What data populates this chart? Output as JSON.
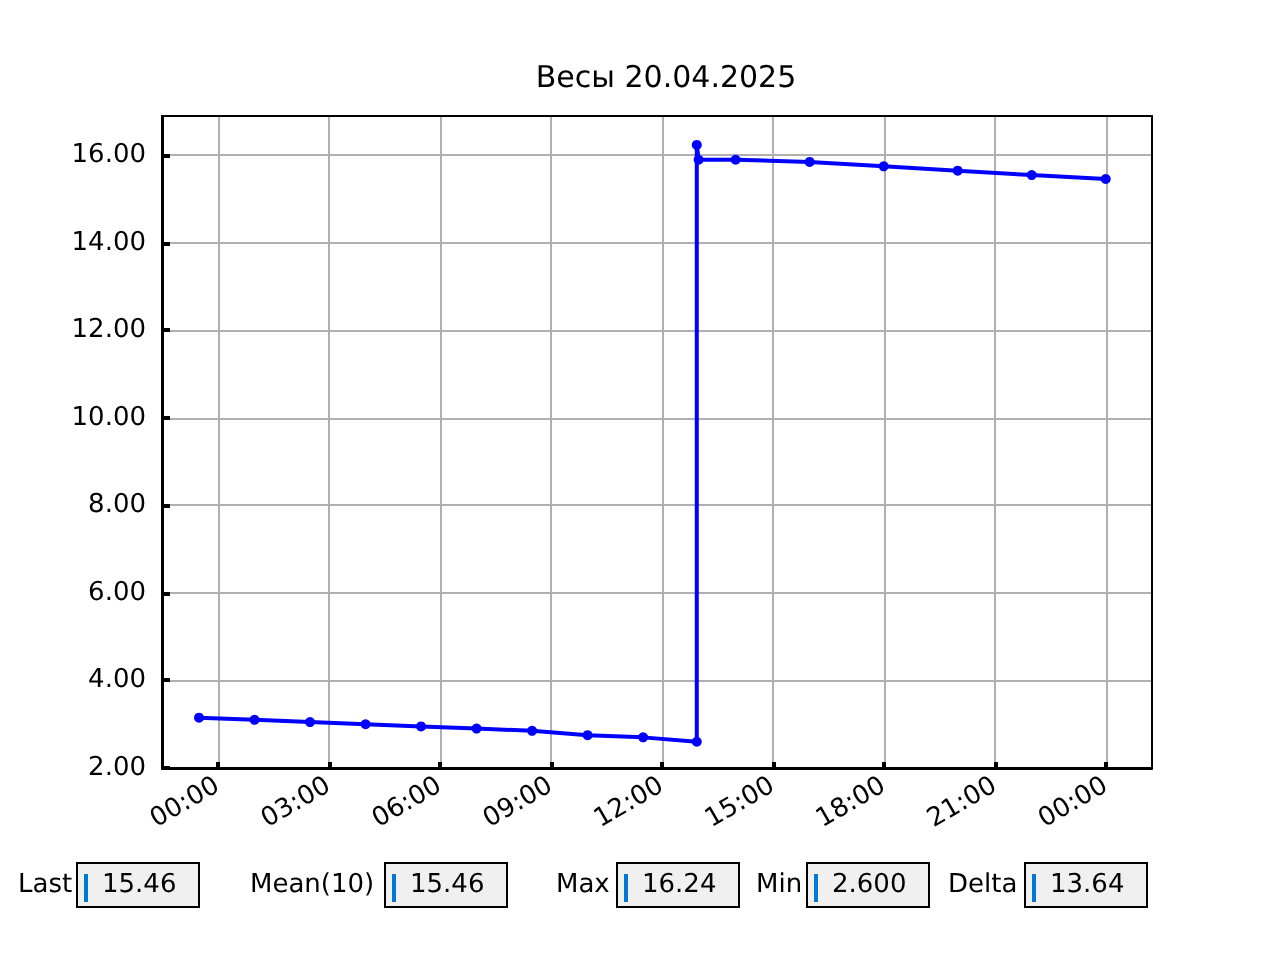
{
  "chart_data": {
    "type": "line",
    "title": "Весы 20.04.2025",
    "x": [
      -0.5,
      1,
      2.5,
      4,
      5.5,
      7,
      8.5,
      10,
      11.5,
      12.95,
      12.95,
      13,
      14,
      16,
      18,
      20,
      22,
      24
    ],
    "series": [
      {
        "color": "#0000ff",
        "values": [
          3.15,
          3.1,
          3.05,
          3.0,
          2.95,
          2.9,
          2.85,
          2.75,
          2.7,
          2.6,
          16.24,
          15.9,
          15.9,
          15.85,
          15.75,
          15.65,
          15.55,
          15.46
        ]
      }
    ],
    "xlim": [
      -1.5,
      25.25
    ],
    "xticks": [
      {
        "value": 0,
        "label": "00:00"
      },
      {
        "value": 3,
        "label": "03:00"
      },
      {
        "value": 6,
        "label": "06:00"
      },
      {
        "value": 9,
        "label": "09:00"
      },
      {
        "value": 12,
        "label": "12:00"
      },
      {
        "value": 15,
        "label": "15:00"
      },
      {
        "value": 18,
        "label": "18:00"
      },
      {
        "value": 21,
        "label": "21:00"
      },
      {
        "value": 24,
        "label": "00:00"
      }
    ],
    "ylim": [
      2,
      16.9
    ],
    "yticks": [
      {
        "value": 2,
        "label": "2.00"
      },
      {
        "value": 4,
        "label": "4.00"
      },
      {
        "value": 6,
        "label": "6.00"
      },
      {
        "value": 8,
        "label": "8.00"
      },
      {
        "value": 10,
        "label": "10.00"
      },
      {
        "value": 12,
        "label": "12.00"
      },
      {
        "value": 14,
        "label": "14.00"
      },
      {
        "value": 16,
        "label": "16.00"
      }
    ],
    "grid": true,
    "marker": "circle",
    "line_style": "solid",
    "annotations": [
      "Last",
      "15.46",
      "Mean(10)",
      "15.46",
      "Max",
      "16.24",
      "Min",
      "2.600",
      "Delta",
      "13.64"
    ]
  }
}
